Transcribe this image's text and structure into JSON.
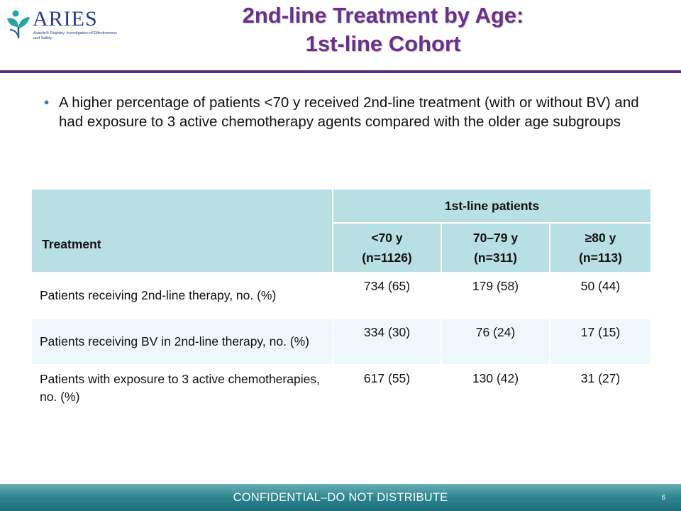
{
  "logo": {
    "name": "ARIES",
    "tagline": "Avastin® Registry: Investigation of Effectiveness and Safety",
    "mark_color": "#2b3990",
    "leaf_color": "#27a6a0"
  },
  "slide": {
    "title_line1": "2nd-line Treatment by Age:",
    "title_line2": "1st-line Cohort",
    "bullet": "A higher percentage of patients <70 y received 2nd-line treatment (with or without BV) and had exposure to 3 active chemotherapy agents compared with the older age subgroups"
  },
  "table": {
    "treatment_header": "Treatment",
    "group_header": "1st-line patients",
    "columns": [
      {
        "line1": "<70 y",
        "line2": "(n=1126)"
      },
      {
        "line1": "70–79 y",
        "line2": "(n=311)"
      },
      {
        "line1": "≥80 y",
        "line2": "(n=113)"
      }
    ],
    "rows": [
      {
        "label": "Patients receiving 2nd-line therapy, no. (%)",
        "values": [
          "734 (65)",
          "179 (58)",
          "50 (44)"
        ]
      },
      {
        "label": "Patients receiving BV in 2nd-line therapy, no. (%)",
        "values": [
          "334 (30)",
          "76 (24)",
          "17 (15)"
        ]
      },
      {
        "label": "Patients with exposure to 3 active chemotherapies, no. (%)",
        "values": [
          "617 (55)",
          "130 (42)",
          "31 (27)"
        ]
      }
    ]
  },
  "footer": {
    "text": "CONFIDENTIAL–DO NOT DISTRIBUTE",
    "page_number": "6"
  },
  "colors": {
    "title": "#6b2f8e",
    "rule": "#5e2a84",
    "table_header": "#b8dfe3",
    "footer": "#2d8590"
  }
}
